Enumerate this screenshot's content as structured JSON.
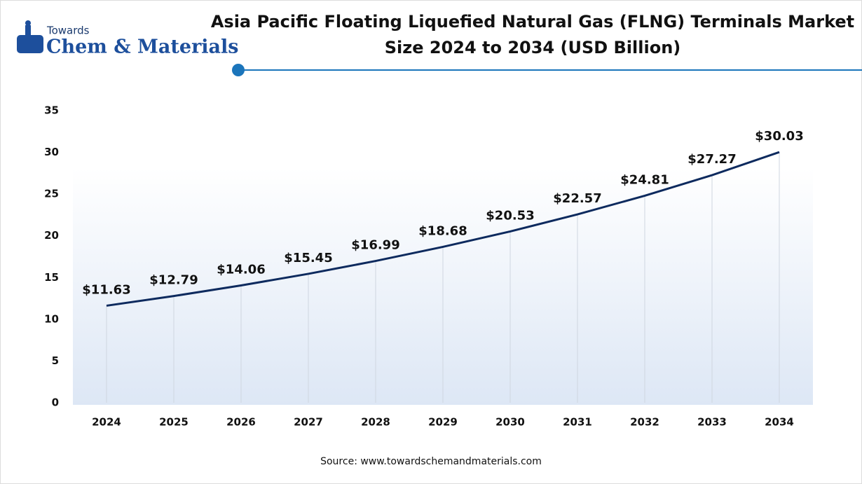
{
  "logo": {
    "top": "Towards",
    "bottom": "Chem & Materials"
  },
  "chart_data": {
    "type": "line",
    "title": "Asia Pacific Floating Liquefied Natural Gas (FLNG) Terminals Market",
    "subtitle": "Size 2024 to 2034 (USD Billion)",
    "categories": [
      "2024",
      "2025",
      "2026",
      "2027",
      "2028",
      "2029",
      "2030",
      "2031",
      "2032",
      "2033",
      "2034"
    ],
    "values": [
      11.63,
      12.79,
      14.06,
      15.45,
      16.99,
      18.68,
      20.53,
      22.57,
      24.81,
      27.27,
      30.03
    ],
    "value_labels": [
      "$11.63",
      "$12.79",
      "$14.06",
      "$15.45",
      "$16.99",
      "$18.68",
      "$20.53",
      "$22.57",
      "$24.81",
      "$27.27",
      "$30.03"
    ],
    "color": "#0d2a5e",
    "ylim": [
      0,
      35
    ],
    "yticks": [
      0,
      5,
      10,
      15,
      20,
      25,
      30,
      35
    ],
    "source": "Source: www.towardschemandmaterials.com"
  }
}
